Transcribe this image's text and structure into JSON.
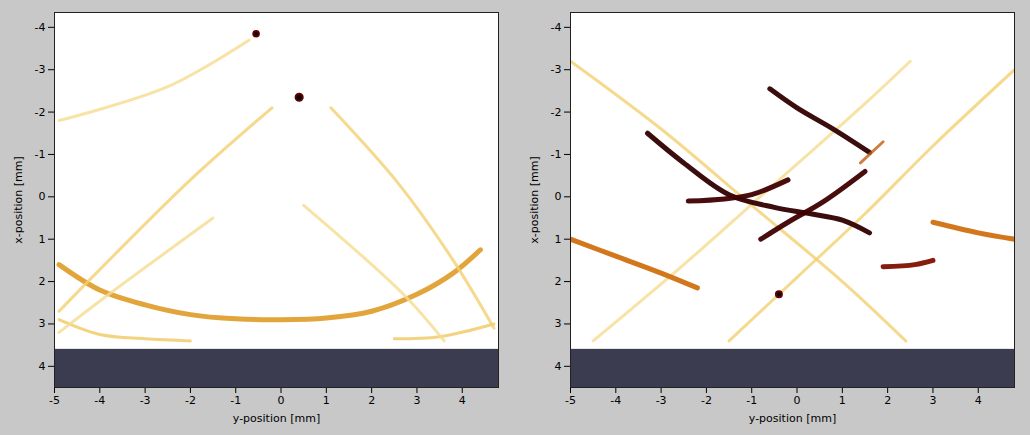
{
  "chart_data": [
    {
      "type": "image",
      "xlabel": "y-position [mm]",
      "ylabel": "x-position [mm]",
      "xlim": [
        -5,
        4.8
      ],
      "ylim": [
        -4.35,
        4.5
      ],
      "xticks": [
        -5,
        -4,
        -3,
        -2,
        -1,
        0,
        1,
        2,
        3,
        4
      ],
      "yticks": [
        -4,
        -3,
        -2,
        -1,
        0,
        1,
        2,
        3,
        4
      ],
      "mask_x_range": [
        3.6,
        4.5
      ],
      "blobs": [
        {
          "y": -0.55,
          "x": -3.85,
          "r": 0.2
        },
        {
          "y": 0.4,
          "x": -2.35,
          "r": 0.33
        }
      ],
      "streaks": [
        {
          "color": "#e0a030",
          "line_style": "bold",
          "points": [
            [
              -4.9,
              1.6
            ],
            [
              -4,
              2.2
            ],
            [
              -3,
              2.55
            ],
            [
              -2,
              2.78
            ],
            [
              -1,
              2.88
            ],
            [
              0,
              2.9
            ],
            [
              1,
              2.86
            ],
            [
              2,
              2.7
            ],
            [
              3,
              2.3
            ],
            [
              3.8,
              1.8
            ],
            [
              4.4,
              1.25
            ]
          ]
        },
        {
          "color": "#f0c860",
          "line_style": "thin",
          "points": [
            [
              -4.9,
              2.9
            ],
            [
              -4,
              3.25
            ],
            [
              -3,
              3.35
            ],
            [
              -2,
              3.4
            ]
          ]
        },
        {
          "color": "#f0c860",
          "line_style": "thin",
          "points": [
            [
              2.5,
              3.35
            ],
            [
              3.5,
              3.3
            ],
            [
              4.7,
              3.0
            ]
          ]
        },
        {
          "color": "#f2d070",
          "line_style": "thin",
          "points": [
            [
              -0.2,
              -2.1
            ],
            [
              -2,
              -0.4
            ],
            [
              -3.8,
              1.5
            ],
            [
              -4.9,
              2.7
            ]
          ]
        },
        {
          "color": "#f2d070",
          "line_style": "thin",
          "points": [
            [
              1.1,
              -2.1
            ],
            [
              2.6,
              -0.3
            ],
            [
              3.8,
              1.5
            ],
            [
              4.7,
              3.1
            ]
          ]
        },
        {
          "color": "#f5dc90",
          "line_style": "thin",
          "points": [
            [
              -4.9,
              3.2
            ],
            [
              -3.8,
              2.3
            ],
            [
              -1.5,
              0.5
            ]
          ]
        },
        {
          "color": "#f5dc90",
          "line_style": "thin",
          "points": [
            [
              0.5,
              0.2
            ],
            [
              2.7,
              2.3
            ],
            [
              3.6,
              3.4
            ]
          ]
        },
        {
          "color": "#f5dc90",
          "line_style": "thin",
          "points": [
            [
              -0.7,
              -3.7
            ],
            [
              -2.5,
              -2.6
            ],
            [
              -4.9,
              -1.8
            ]
          ]
        }
      ]
    },
    {
      "type": "image",
      "xlabel": "y-position [mm]",
      "ylabel": "x-position [mm]",
      "xlim": [
        -5,
        4.8
      ],
      "ylim": [
        -4.35,
        4.5
      ],
      "xticks": [
        -5,
        -4,
        -3,
        -2,
        -1,
        0,
        1,
        2,
        3,
        4
      ],
      "yticks": [
        -4,
        -3,
        -2,
        -1,
        0,
        1,
        2,
        3,
        4
      ],
      "mask_x_range": [
        3.6,
        4.5
      ],
      "blobs": [
        {
          "y": -0.4,
          "x": 2.3,
          "r": 0.08
        }
      ],
      "streaks": [
        {
          "color": "#f2d070",
          "line_style": "thin",
          "points": [
            [
              -5,
              -3.2
            ],
            [
              -3,
              -1.6
            ],
            [
              -1,
              0.2
            ],
            [
              1,
              2.0
            ],
            [
              2.4,
              3.4
            ]
          ]
        },
        {
          "color": "#f2d070",
          "line_style": "thin",
          "points": [
            [
              4.8,
              -3.0
            ],
            [
              3,
              -1.2
            ],
            [
              1.5,
              0.4
            ],
            [
              0,
              1.9
            ],
            [
              -1.5,
              3.4
            ]
          ]
        },
        {
          "color": "#f5dc90",
          "line_style": "thin",
          "points": [
            [
              -4.5,
              3.4
            ],
            [
              -2.5,
              1.6
            ],
            [
              -0.5,
              -0.3
            ],
            [
              1.5,
              -2.2
            ],
            [
              2.5,
              -3.2
            ]
          ]
        },
        {
          "color": "#d07010",
          "line_style": "bold",
          "points": [
            [
              -5,
              1.0
            ],
            [
              -4,
              1.4
            ],
            [
              -3,
              1.8
            ],
            [
              -2.2,
              2.15
            ]
          ]
        },
        {
          "color": "#d07010",
          "line_style": "bold",
          "points": [
            [
              3,
              0.6
            ],
            [
              4,
              0.85
            ],
            [
              4.8,
              1.0
            ]
          ]
        },
        {
          "color": "#300000",
          "line_style": "bold",
          "points": [
            [
              -3.3,
              -1.5
            ],
            [
              -2.5,
              -0.8
            ],
            [
              -1.5,
              -0.05
            ],
            [
              -0.5,
              0.25
            ],
            [
              0.3,
              0.4
            ],
            [
              1.0,
              0.55
            ],
            [
              1.6,
              0.85
            ]
          ]
        },
        {
          "color": "#300000",
          "line_style": "bold",
          "points": [
            [
              -0.6,
              -2.55
            ],
            [
              0,
              -2.1
            ],
            [
              0.8,
              -1.6
            ],
            [
              1.6,
              -1.05
            ]
          ]
        },
        {
          "color": "#400000",
          "line_style": "bold",
          "points": [
            [
              -2.4,
              0.1
            ],
            [
              -1.6,
              0.05
            ],
            [
              -1.0,
              -0.05
            ],
            [
              -0.2,
              -0.4
            ]
          ]
        },
        {
          "color": "#400000",
          "line_style": "bold",
          "points": [
            [
              -0.8,
              1.0
            ],
            [
              -0.2,
              0.6
            ],
            [
              0.6,
              0.1
            ],
            [
              1.5,
              -0.6
            ]
          ]
        },
        {
          "color": "#801000",
          "line_style": "bold",
          "points": [
            [
              1.9,
              1.65
            ],
            [
              2.6,
              1.6
            ],
            [
              3.0,
              1.5
            ]
          ]
        },
        {
          "color": "#c06010",
          "line_style": "thin",
          "points": [
            [
              1.4,
              -0.8
            ],
            [
              1.9,
              -1.3
            ]
          ]
        }
      ]
    }
  ]
}
